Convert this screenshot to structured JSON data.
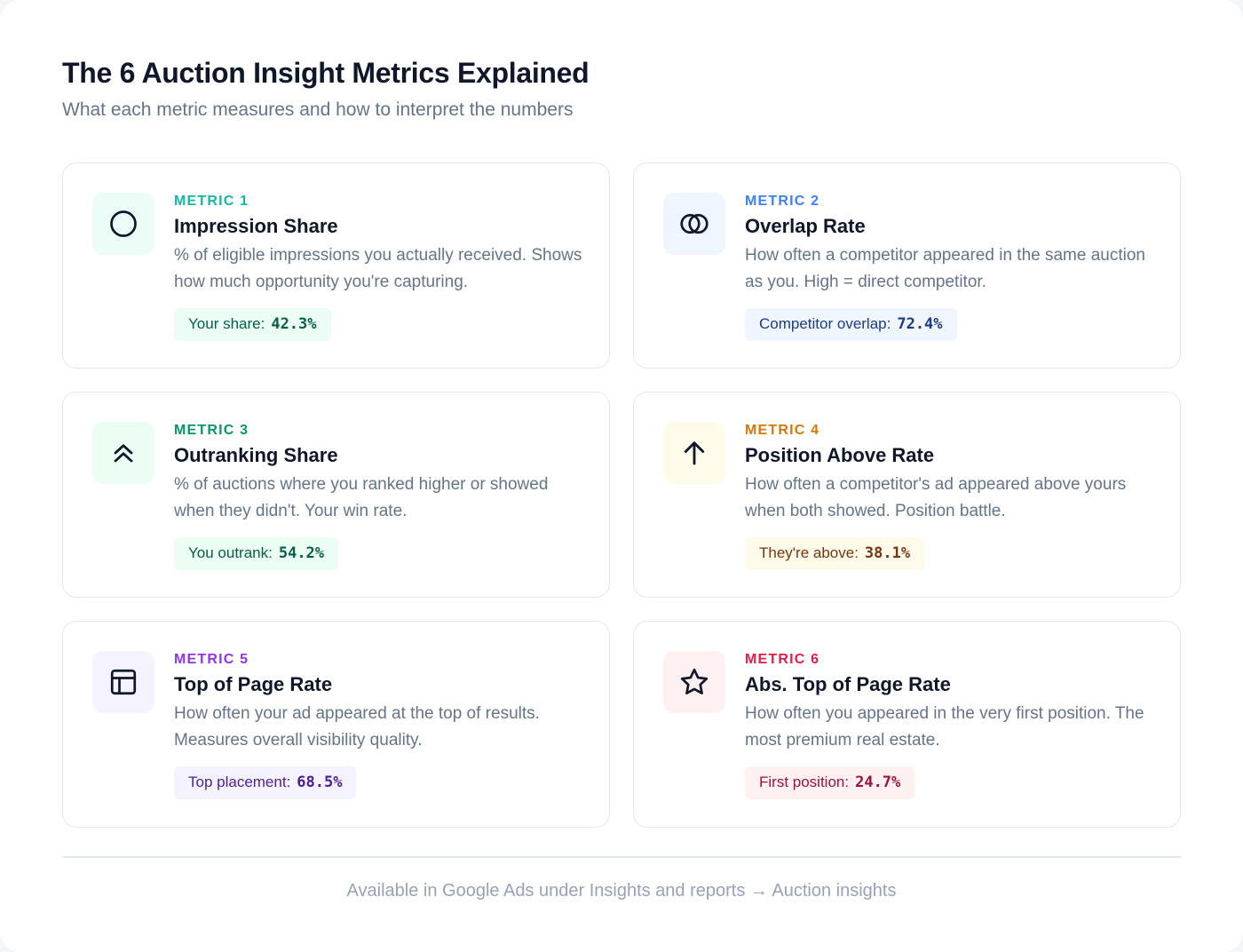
{
  "header": {
    "title": "The 6 Auction Insight Metrics Explained",
    "subtitle": "What each metric measures and how to interpret the numbers"
  },
  "metrics": [
    {
      "label": "METRIC 1",
      "name": "Impression Share",
      "description": "% of eligible impressions you actually received. Shows how much opportunity you're capturing.",
      "pill_label": "Your share:",
      "pill_value": "42.3%",
      "icon": "circle-icon",
      "accent": "#14b8a6",
      "icon_bg": "#ecfdf8",
      "pill_bg": "#ecfdf5",
      "pill_text": "#065f46"
    },
    {
      "label": "METRIC 2",
      "name": "Overlap Rate",
      "description": "How often a competitor appeared in the same auction as you. High = direct competitor.",
      "pill_label": "Competitor overlap:",
      "pill_value": "72.4%",
      "icon": "overlap-circles-icon",
      "accent": "#3b82f6",
      "icon_bg": "#eff6ff",
      "pill_bg": "#eff6ff",
      "pill_text": "#1e3a8a"
    },
    {
      "label": "METRIC 3",
      "name": "Outranking Share",
      "description": "% of auctions where you ranked higher or showed when they didn't. Your win rate.",
      "pill_label": "You outrank:",
      "pill_value": "54.2%",
      "icon": "double-chevron-up-icon",
      "accent": "#059669",
      "icon_bg": "#ecfdf3",
      "pill_bg": "#ecfdf3",
      "pill_text": "#065f46"
    },
    {
      "label": "METRIC 4",
      "name": "Position Above Rate",
      "description": "How often a competitor's ad appeared above yours when both showed. Position battle.",
      "pill_label": "They're above:",
      "pill_value": "38.1%",
      "icon": "arrow-up-icon",
      "accent": "#d97706",
      "icon_bg": "#fffbeb",
      "pill_bg": "#fffbeb",
      "pill_text": "#78350f"
    },
    {
      "label": "METRIC 5",
      "name": "Top of Page Rate",
      "description": "How often your ad appeared at the top of results. Measures overall visibility quality.",
      "pill_label": "Top placement:",
      "pill_value": "68.5%",
      "icon": "layout-icon",
      "accent": "#9333ea",
      "icon_bg": "#f5f3ff",
      "pill_bg": "#f5f3ff",
      "pill_text": "#4c1d95"
    },
    {
      "label": "METRIC 6",
      "name": "Abs. Top of Page Rate",
      "description": "How often you appeared in the very first position. The most premium real estate.",
      "pill_label": "First position:",
      "pill_value": "24.7%",
      "icon": "star-icon",
      "accent": "#e11d48",
      "icon_bg": "#fff1f2",
      "pill_bg": "#fff1f2",
      "pill_text": "#9f1239"
    }
  ],
  "footer": {
    "text": "Available in Google Ads under Insights and reports → Auction insights"
  }
}
